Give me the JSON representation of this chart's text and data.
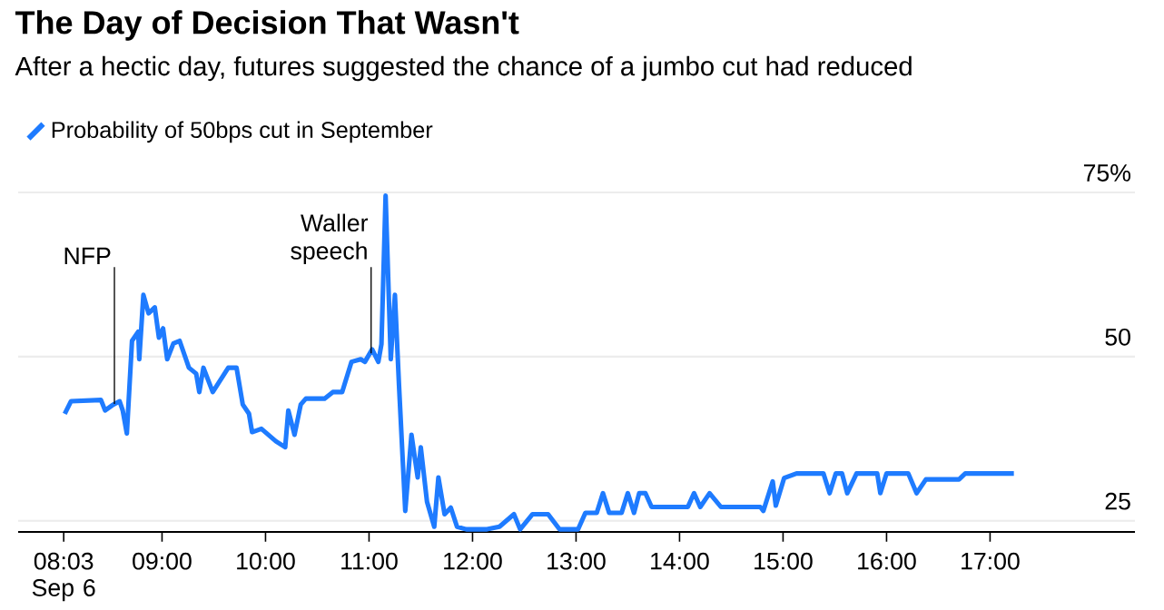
{
  "chart_data": {
    "type": "line",
    "title": "The Day of Decision That Wasn't",
    "subtitle": "After a hectic day, futures suggested the chance of a jumbo cut had reduced",
    "x": [
      8.06,
      8.12,
      8.41,
      8.45,
      8.53,
      8.59,
      8.62,
      8.66,
      8.71,
      8.77,
      8.78,
      8.82,
      8.87,
      8.93,
      8.97,
      9.01,
      9.05,
      9.11,
      9.17,
      9.26,
      9.33,
      9.36,
      9.4,
      9.49,
      9.64,
      9.72,
      9.78,
      9.84,
      9.87,
      9.96,
      10.1,
      10.19,
      10.22,
      10.28,
      10.34,
      10.39,
      10.57,
      10.65,
      10.74,
      10.83,
      10.92,
      10.96,
      11.03,
      11.09,
      11.12,
      11.16,
      11.21,
      11.25,
      11.29,
      11.35,
      11.41,
      11.47,
      11.5,
      11.56,
      11.63,
      11.67,
      11.73,
      11.79,
      11.85,
      11.94,
      12.14,
      12.26,
      12.4,
      12.46,
      12.58,
      12.73,
      12.84,
      13.02,
      13.09,
      13.2,
      13.26,
      13.32,
      13.44,
      13.5,
      13.56,
      13.61,
      13.67,
      13.73,
      14.08,
      14.14,
      14.2,
      14.29,
      14.4,
      14.78,
      14.81,
      14.9,
      14.93,
      15.01,
      15.13,
      15.39,
      15.45,
      15.51,
      15.57,
      15.62,
      15.71,
      15.91,
      15.94,
      16.0,
      16.21,
      16.29,
      16.38,
      16.44,
      16.7,
      16.76,
      17.23
    ],
    "series": [
      {
        "name": "Probability of 50bps cut in September",
        "color": "#1e7bff",
        "values": [
          41.3,
          43.2,
          43.4,
          41.8,
          42.7,
          43.2,
          41.8,
          38.3,
          52.4,
          53.8,
          49.6,
          59.4,
          56.6,
          57.5,
          52.9,
          54.3,
          49.6,
          52.0,
          52.4,
          48.3,
          47.4,
          44.6,
          48.3,
          44.6,
          48.3,
          48.3,
          42.7,
          41.3,
          38.5,
          39.0,
          37.1,
          36.2,
          41.8,
          38.1,
          42.7,
          43.6,
          43.6,
          44.6,
          44.6,
          49.2,
          49.6,
          49.2,
          51.1,
          49.2,
          51.9,
          74.5,
          49.6,
          59.4,
          45.5,
          26.5,
          38.1,
          31.6,
          36.2,
          27.9,
          24.1,
          31.6,
          26.0,
          27.0,
          24.1,
          23.7,
          23.7,
          24.1,
          26.0,
          23.7,
          26.0,
          26.0,
          23.7,
          23.7,
          26.2,
          26.2,
          29.2,
          26.2,
          26.2,
          29.2,
          26.2,
          29.2,
          29.2,
          27.1,
          27.1,
          29.2,
          27.1,
          29.2,
          27.1,
          27.1,
          26.5,
          31.0,
          27.3,
          31.5,
          32.2,
          32.2,
          29.2,
          32.2,
          32.2,
          29.2,
          32.2,
          32.2,
          29.2,
          32.2,
          32.2,
          29.2,
          31.3,
          31.3,
          31.3,
          32.2,
          32.2
        ]
      }
    ],
    "xlim": [
      7.61,
      18.4
    ],
    "ylim": [
      23.3,
      75
    ],
    "xticks": [
      {
        "value": 8.05,
        "label": "08:03 Sep 6"
      },
      {
        "value": 9,
        "label": "09:00"
      },
      {
        "value": 10,
        "label": "10:00"
      },
      {
        "value": 11,
        "label": "11:00"
      },
      {
        "value": 12,
        "label": "12:00"
      },
      {
        "value": 13,
        "label": "13:00"
      },
      {
        "value": 14,
        "label": "14:00"
      },
      {
        "value": 15,
        "label": "15:00"
      },
      {
        "value": 16,
        "label": "16:00"
      },
      {
        "value": 17,
        "label": "17:00"
      }
    ],
    "yticks": [
      25,
      50,
      {
        "value": 75,
        "label": "75%"
      }
    ],
    "annotations": [
      {
        "text": "NFP",
        "x": 8.54,
        "y": 42.8
      },
      {
        "text": "Waller speech",
        "x": 11.02,
        "y": 50.5
      }
    ],
    "grid": "y",
    "legend": "top left",
    "marker": "none",
    "line_style": "solid"
  }
}
